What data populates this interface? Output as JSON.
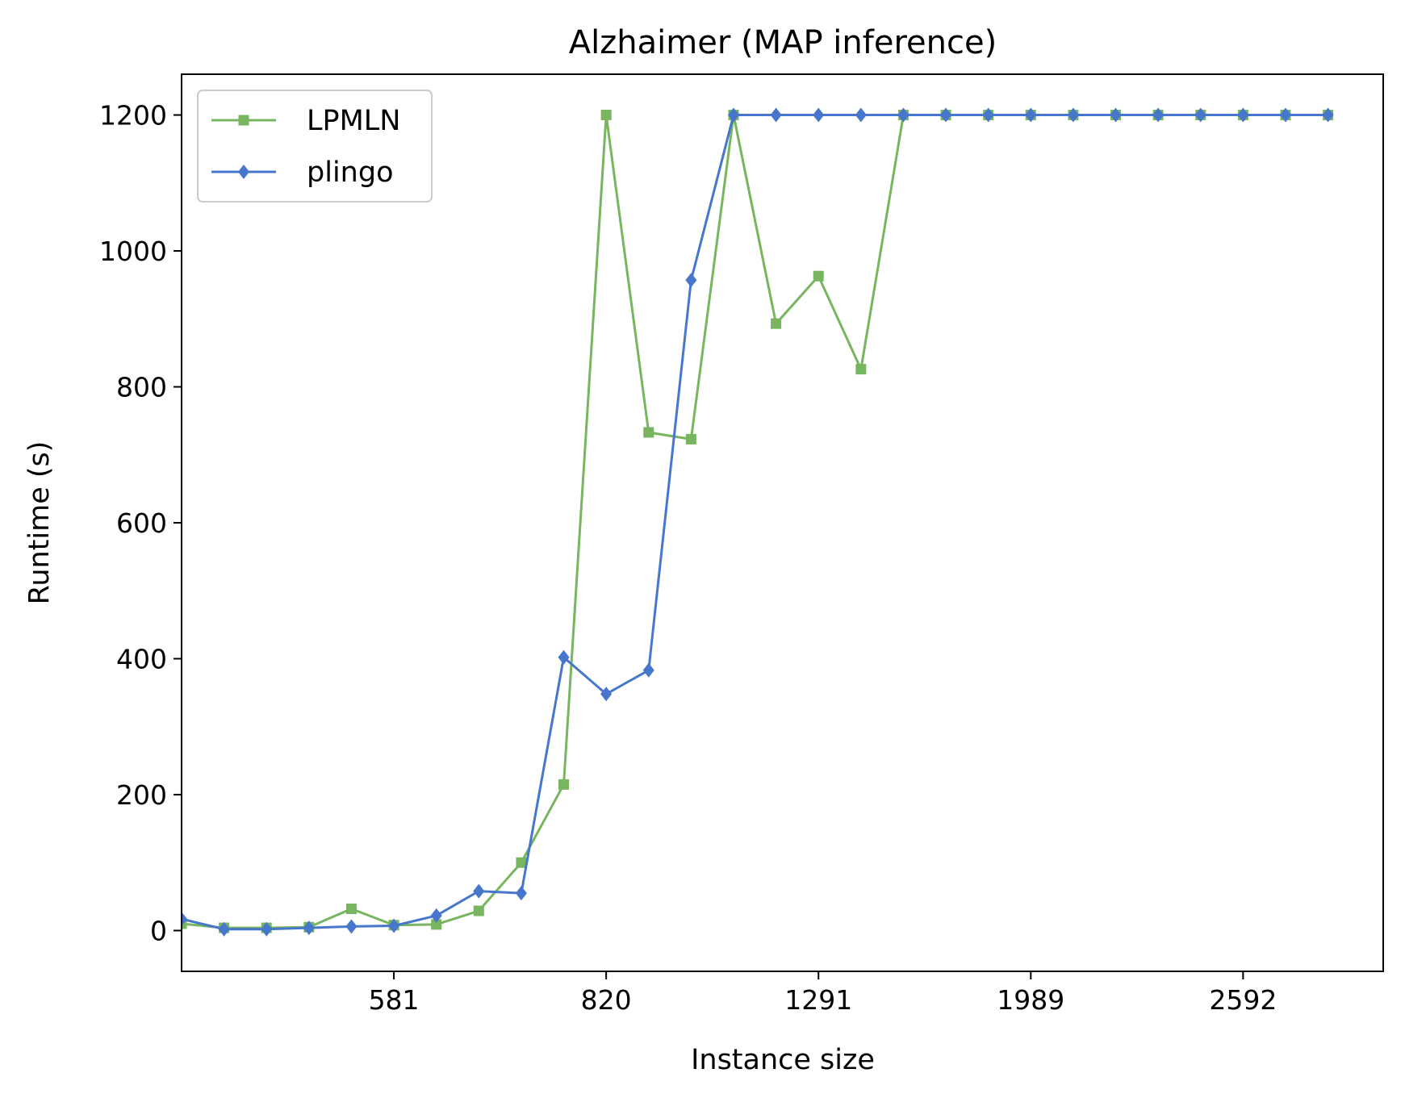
{
  "chart_data": {
    "type": "line",
    "title": "Alzhaimer (MAP inference)",
    "xlabel": "Instance size",
    "ylabel": "Runtime (s)",
    "x_tick_labels": [
      "581",
      "820",
      "1291",
      "1989",
      "2592"
    ],
    "x_tick_index": [
      5,
      10,
      15,
      20,
      25
    ],
    "x_index_range": [
      0,
      28.3
    ],
    "y_ticks": [
      0,
      200,
      400,
      600,
      800,
      1000,
      1200
    ],
    "ylim": [
      -60,
      1260
    ],
    "grid": false,
    "legend_position": "top-left",
    "series": [
      {
        "name": "LPMLN",
        "color": "#77b55f",
        "marker": "square",
        "values": [
          10,
          4,
          4,
          5,
          32,
          8,
          9,
          29,
          100,
          215,
          1200,
          733,
          723,
          1200,
          893,
          963,
          826,
          1200,
          1200,
          1200,
          1200,
          1200,
          1200,
          1200,
          1200,
          1200,
          1200,
          1200
        ]
      },
      {
        "name": "plingo",
        "color": "#4677cc",
        "marker": "diamond",
        "values": [
          17,
          2,
          2,
          4,
          6,
          7,
          22,
          58,
          55,
          402,
          348,
          383,
          957,
          1200,
          1200,
          1200,
          1200,
          1200,
          1200,
          1200,
          1200,
          1200,
          1200,
          1200,
          1200,
          1200,
          1200,
          1200
        ]
      }
    ]
  }
}
